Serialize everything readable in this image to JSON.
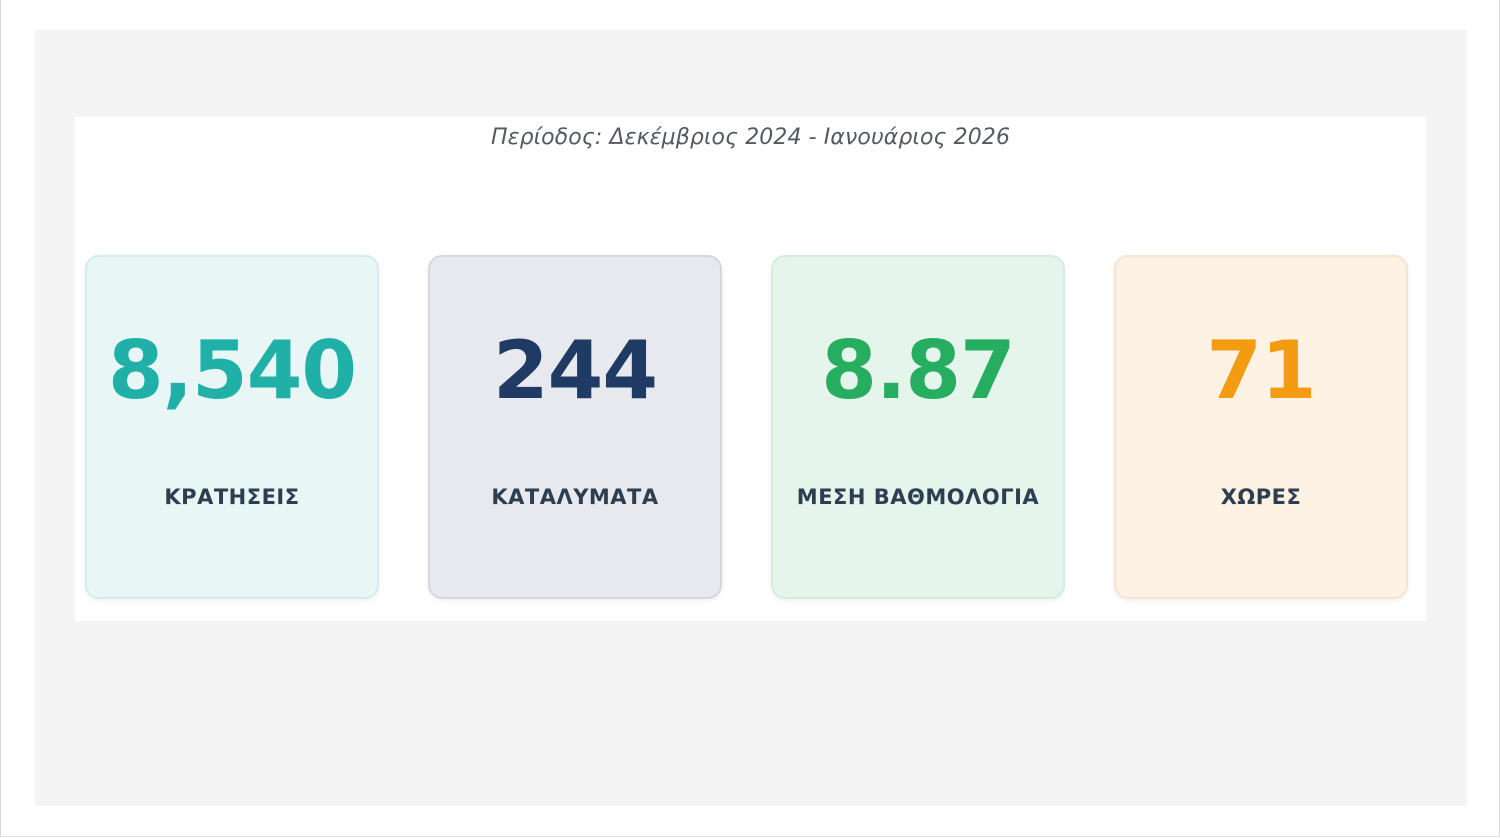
{
  "header": {
    "period": "Περίοδος: Δεκέμβριος 2024 - Ιανουάριος 2026"
  },
  "cards": [
    {
      "value": "8,540",
      "label": "ΚΡΑΤΗΣΕΙΣ",
      "color": "#20b0a8"
    },
    {
      "value": "244",
      "label": "ΚΑΤΑΛΥΜΑΤΑ",
      "color": "#1f3a63"
    },
    {
      "value": "8.87",
      "label": "ΜΕΣΗ ΒΑΘΜΟΛΟΓΙΑ",
      "color": "#26ad5f"
    },
    {
      "value": "71",
      "label": "ΧΩΡΕΣ",
      "color": "#f39c12"
    }
  ]
}
